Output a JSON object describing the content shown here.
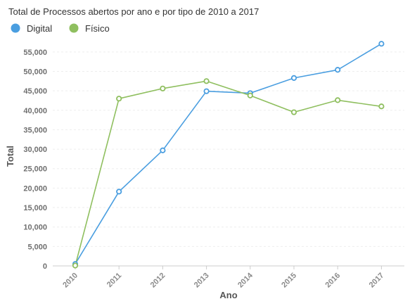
{
  "chart_data": {
    "type": "line",
    "title": "Total de Processos abertos por ano e por tipo de 2010 a 2017",
    "xlabel": "Ano",
    "ylabel": "Total",
    "categories": [
      "2010",
      "2011",
      "2012",
      "2013",
      "2014",
      "2015",
      "2016",
      "2017"
    ],
    "ylim": [
      0,
      57500
    ],
    "yticks": [
      0,
      5000,
      10000,
      15000,
      20000,
      25000,
      30000,
      35000,
      40000,
      45000,
      50000,
      55000
    ],
    "ytick_labels": [
      "0",
      "5,000",
      "10,000",
      "15,000",
      "20,000",
      "25,000",
      "30,000",
      "35,000",
      "40,000",
      "45,000",
      "50,000",
      "55,000"
    ],
    "grid": true,
    "legend_position": "top-left",
    "series": [
      {
        "name": "Digital",
        "color": "#4a9ee0",
        "values": [
          500,
          19100,
          29700,
          44900,
          44400,
          48300,
          50400,
          57100
        ]
      },
      {
        "name": "Físico",
        "color": "#8fbf5f",
        "values": [
          100,
          43000,
          45600,
          47500,
          43800,
          39500,
          42600,
          41000
        ]
      }
    ]
  }
}
